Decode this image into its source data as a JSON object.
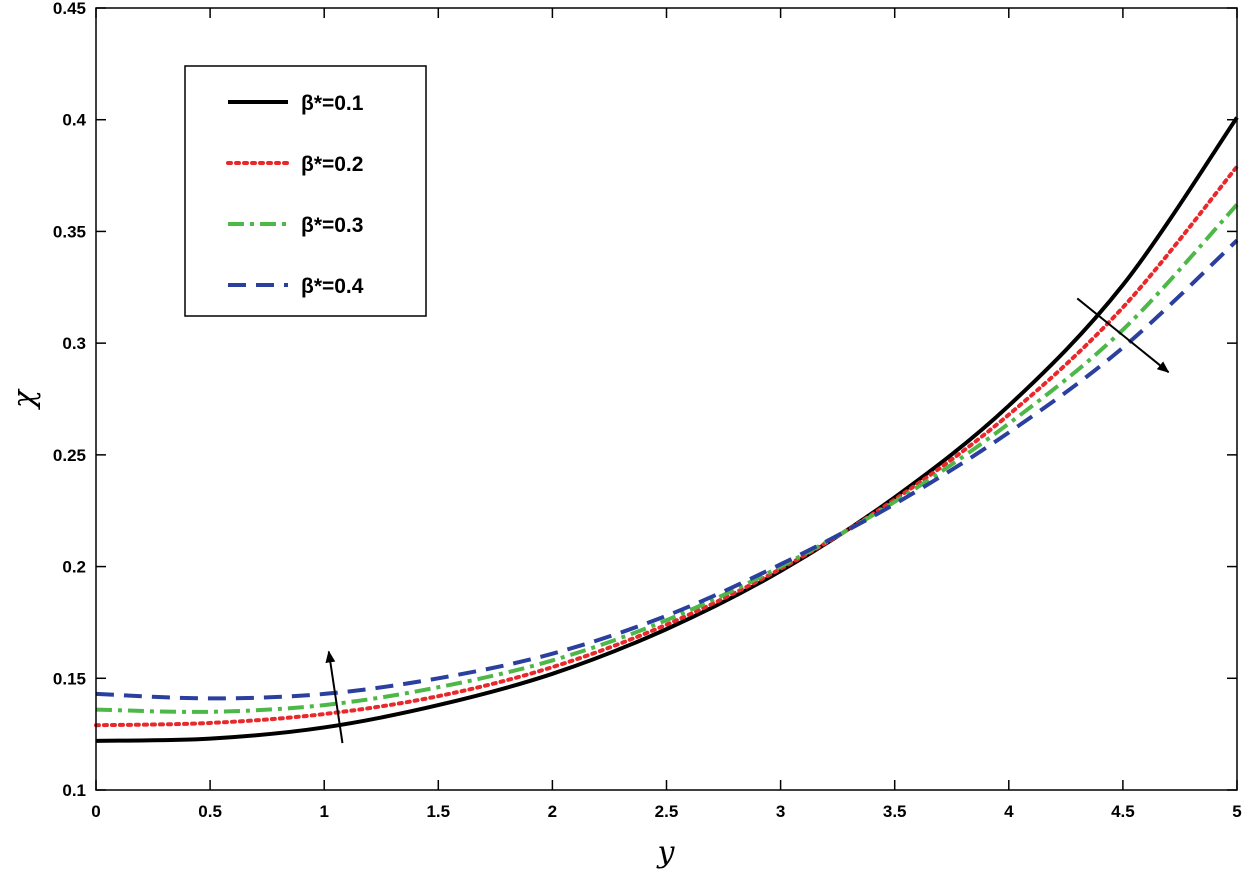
{
  "chart_data": {
    "type": "line",
    "xlabel": "y",
    "ylabel": "χ",
    "xlim": [
      0,
      5
    ],
    "ylim": [
      0.1,
      0.45
    ],
    "x_ticks": [
      0,
      0.5,
      1,
      1.5,
      2,
      2.5,
      3,
      3.5,
      4,
      4.5,
      5
    ],
    "x_tick_labels": [
      "0",
      "0.5",
      "1",
      "1.5",
      "2",
      "2.5",
      "3",
      "3.5",
      "4",
      "4.5",
      "5"
    ],
    "y_ticks": [
      0.1,
      0.15,
      0.2,
      0.25,
      0.3,
      0.35,
      0.4,
      0.45
    ],
    "y_tick_labels": [
      "0.1",
      "0.15",
      "0.2",
      "0.25",
      "0.3",
      "0.35",
      "0.4",
      "0.45"
    ],
    "grid": false,
    "legend_position": "top-left",
    "x": [
      0,
      0.5,
      1,
      1.5,
      2,
      2.5,
      3,
      3.5,
      4,
      4.5,
      5
    ],
    "series": [
      {
        "name": "β*=0.1",
        "color": "#000000",
        "style": "solid",
        "values": [
          0.122,
          0.123,
          0.128,
          0.138,
          0.152,
          0.172,
          0.198,
          0.231,
          0.272,
          0.326,
          0.401
        ]
      },
      {
        "name": "β*=0.2",
        "color": "#e8292b",
        "style": "dotted",
        "values": [
          0.129,
          0.13,
          0.134,
          0.142,
          0.155,
          0.174,
          0.199,
          0.23,
          0.268,
          0.316,
          0.379
        ]
      },
      {
        "name": "β*=0.3",
        "color": "#4db848",
        "style": "dashdot",
        "values": [
          0.136,
          0.135,
          0.138,
          0.146,
          0.158,
          0.176,
          0.2,
          0.229,
          0.264,
          0.306,
          0.362
        ]
      },
      {
        "name": "β*=0.4",
        "color": "#2a3f9e",
        "style": "dashed",
        "values": [
          0.143,
          0.141,
          0.143,
          0.15,
          0.161,
          0.178,
          0.201,
          0.228,
          0.26,
          0.298,
          0.346
        ]
      }
    ],
    "annotations": [
      {
        "type": "arrow",
        "from": [
          1.08,
          0.121
        ],
        "to": [
          1.02,
          0.162
        ],
        "color": "#000000"
      },
      {
        "type": "arrow",
        "from": [
          4.3,
          0.32
        ],
        "to": [
          4.7,
          0.287
        ],
        "color": "#000000"
      }
    ]
  }
}
